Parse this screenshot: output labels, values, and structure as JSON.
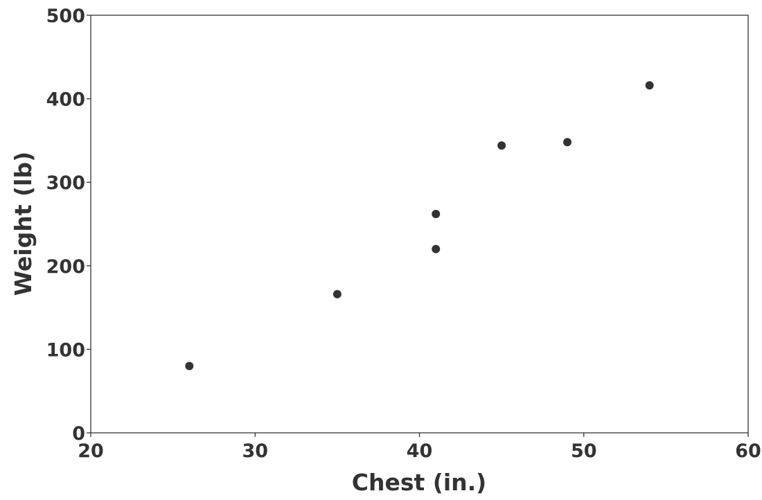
{
  "chart_data": {
    "type": "scatter",
    "title": "",
    "xlabel": "Chest (in.)",
    "ylabel": "Weight (lb)",
    "xlim": [
      20,
      60
    ],
    "ylim": [
      0,
      500
    ],
    "x_ticks": [
      20,
      30,
      40,
      50,
      60
    ],
    "y_ticks": [
      0,
      100,
      200,
      300,
      400,
      500
    ],
    "grid": false,
    "legend": "none",
    "marker_color": "#333333",
    "points": [
      {
        "x": 26,
        "y": 80
      },
      {
        "x": 35,
        "y": 166
      },
      {
        "x": 41,
        "y": 220
      },
      {
        "x": 41,
        "y": 262
      },
      {
        "x": 45,
        "y": 344
      },
      {
        "x": 49,
        "y": 348
      },
      {
        "x": 54,
        "y": 416
      }
    ]
  }
}
